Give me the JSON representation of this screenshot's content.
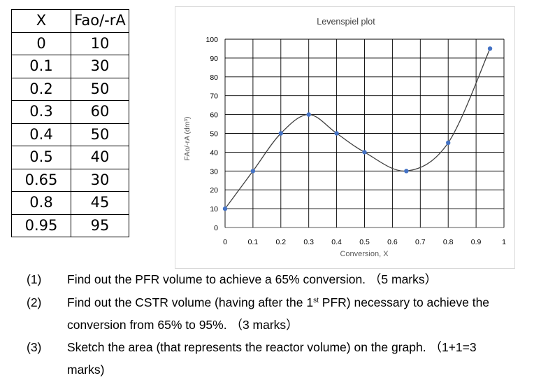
{
  "table": {
    "header": [
      "X",
      "Fao/-rA"
    ],
    "rows": [
      [
        "0",
        "10"
      ],
      [
        "0.1",
        "30"
      ],
      [
        "0.2",
        "50"
      ],
      [
        "0.3",
        "60"
      ],
      [
        "0.4",
        "50"
      ],
      [
        "0.5",
        "40"
      ],
      [
        "0.65",
        "30"
      ],
      [
        "0.8",
        "45"
      ],
      [
        "0.95",
        "95"
      ]
    ]
  },
  "chart_data": {
    "type": "scatter",
    "title": "Levenspiel plot",
    "xlabel": "Conversion, X",
    "ylabel": "FAo/-rA (dm³)",
    "x": [
      0,
      0.1,
      0.2,
      0.3,
      0.4,
      0.5,
      0.65,
      0.8,
      0.95
    ],
    "y": [
      10,
      30,
      50,
      60,
      50,
      40,
      30,
      45,
      95
    ],
    "xlim": [
      0,
      1
    ],
    "ylim": [
      0,
      100
    ],
    "x_ticks": [
      0,
      0.1,
      0.2,
      0.3,
      0.4,
      0.5,
      0.6,
      0.7,
      0.8,
      0.9,
      1
    ],
    "x_tick_labels": [
      "0",
      "0.1",
      "0.2",
      "0.3",
      "0.4",
      "0.5",
      "0.6",
      "0.7",
      "0.8",
      "0.9",
      "1"
    ],
    "y_ticks": [
      0,
      10,
      20,
      30,
      40,
      50,
      60,
      70,
      80,
      90,
      100
    ],
    "y_tick_labels": [
      "0",
      "10",
      "20",
      "30",
      "40",
      "50",
      "60",
      "70",
      "80",
      "90",
      "100"
    ],
    "grid": true,
    "smooth_line": true,
    "marker_color": "#4472c4",
    "line_color": "#404040"
  },
  "questions": [
    {
      "num": "(1)",
      "lines": [
        [
          "Find out the PFR volume to achieve a 65% conversion.  （5 marks）"
        ]
      ]
    },
    {
      "num": "(2)",
      "lines": [
        [
          "Find out the CSTR volume (having after the 1",
          {
            "sup": "st"
          },
          " PFR) necessary to achieve the"
        ],
        [
          "conversion from 65% to 95%.  （3 marks）"
        ]
      ]
    },
    {
      "num": "(3)",
      "lines": [
        [
          "Sketch the area (that represents the reactor volume) on the graph.  （1+1=3"
        ],
        [
          "marks)"
        ]
      ]
    }
  ]
}
